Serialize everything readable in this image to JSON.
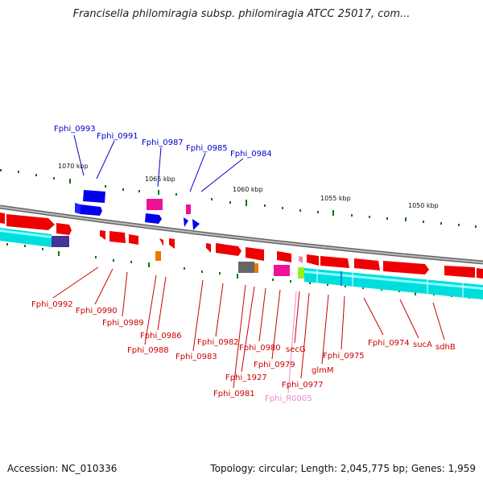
{
  "title": "Francisella philomiragia subsp. philomiragia ATCC 25017, com...",
  "footer": {
    "accession": "Accession: NC_010336",
    "topology": "Topology: circular; Length: 2,045,775 bp; Genes: 1,959"
  },
  "ticks": [
    "1070 kbp",
    "1065 kbp",
    "1060 kbp",
    "1055 kbp",
    "1050 kbp"
  ],
  "labels_top": [
    "Fphi_0993",
    "Fphi_0991",
    "Fphi_0987",
    "Fphi_0985",
    "Fphi_0984"
  ],
  "labels_bottom": [
    "Fphi_0992",
    "Fphi_0990",
    "Fphi_0989",
    "Fphi_0986",
    "Fphi_0988",
    "Fphi_0983",
    "Fphi_0982",
    "Fphi_1927",
    "Fphi_0981",
    "Fphi_0980",
    "Fphi_0979",
    "secG",
    "Fphi_R0005",
    "Fphi_0977",
    "glmM",
    "Fphi_0975",
    "Fphi_0974",
    "sucA",
    "sdhB"
  ],
  "colors": {
    "forward_gene": "#ee0000",
    "reverse_gene": "#0000ee",
    "cds_track": "#00e0e0",
    "backbone": "#888888",
    "gc_skew": "#006600",
    "label_red": "#cc0000",
    "label_blue": "#0000cc",
    "label_pink": "#ee88cc"
  }
}
